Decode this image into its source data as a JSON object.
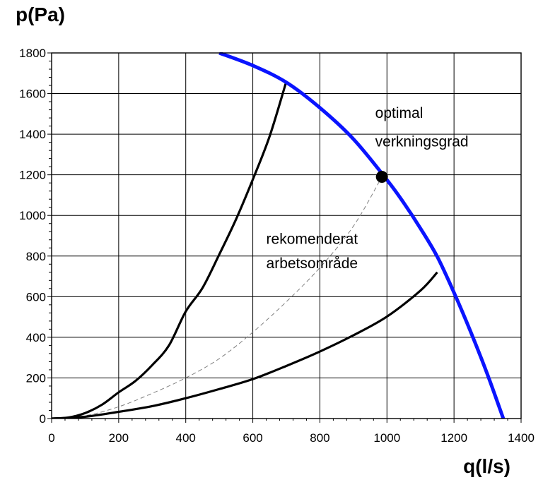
{
  "chart_data": {
    "type": "line",
    "title": "",
    "xlabel": "q(l/s)",
    "ylabel": "p(Pa)",
    "xlim": [
      0,
      1400
    ],
    "ylim": [
      0,
      1800
    ],
    "x_ticks": [
      0,
      200,
      400,
      600,
      800,
      1000,
      1200,
      1400
    ],
    "y_ticks": [
      0,
      200,
      400,
      600,
      800,
      1000,
      1200,
      1400,
      1600,
      1800
    ],
    "grid": true,
    "series": [
      {
        "color": "#0a14ff",
        "style": "thick",
        "x": [
          500,
          600,
          700,
          800,
          900,
          1000,
          1050,
          1100,
          1150,
          1200,
          1250,
          1300,
          1347
        ],
        "y": [
          1800,
          1738,
          1655,
          1530,
          1376,
          1175,
          1062,
          936,
          797,
          620,
          426,
          216,
          0
        ]
      },
      {
        "color": "#000000",
        "style": "thick",
        "x": [
          0,
          50,
          100,
          150,
          200,
          250,
          300,
          350,
          400,
          450,
          500,
          550,
          600,
          650,
          700
        ],
        "y": [
          0,
          5,
          27,
          68,
          129,
          185,
          263,
          360,
          527,
          643,
          808,
          981,
          1177,
          1389,
          1660
        ]
      },
      {
        "color": "#000000",
        "style": "thick",
        "x": [
          0,
          100,
          200,
          300,
          400,
          500,
          600,
          700,
          800,
          900,
          1000,
          1100,
          1150
        ],
        "y": [
          0,
          9,
          33,
          61,
          100,
          145,
          194,
          259,
          330,
          410,
          502,
          630,
          720
        ]
      },
      {
        "color": "#808080",
        "style": "dashed",
        "x": [
          0,
          100,
          200,
          300,
          400,
          500,
          600,
          700,
          800,
          900,
          985
        ],
        "y": [
          0,
          14,
          58,
          124,
          200,
          295,
          425,
          575,
          743,
          947,
          1190
        ]
      }
    ],
    "optimal_point": {
      "x": 985,
      "y": 1190
    },
    "annotations": [
      {
        "text": "optimal",
        "x": 965,
        "y": 1480
      },
      {
        "text": "verkningsgrad",
        "x": 965,
        "y": 1340
      },
      {
        "text": "rekomenderat",
        "x": 640,
        "y": 860
      },
      {
        "text": "arbetsområde",
        "x": 640,
        "y": 740
      }
    ]
  }
}
